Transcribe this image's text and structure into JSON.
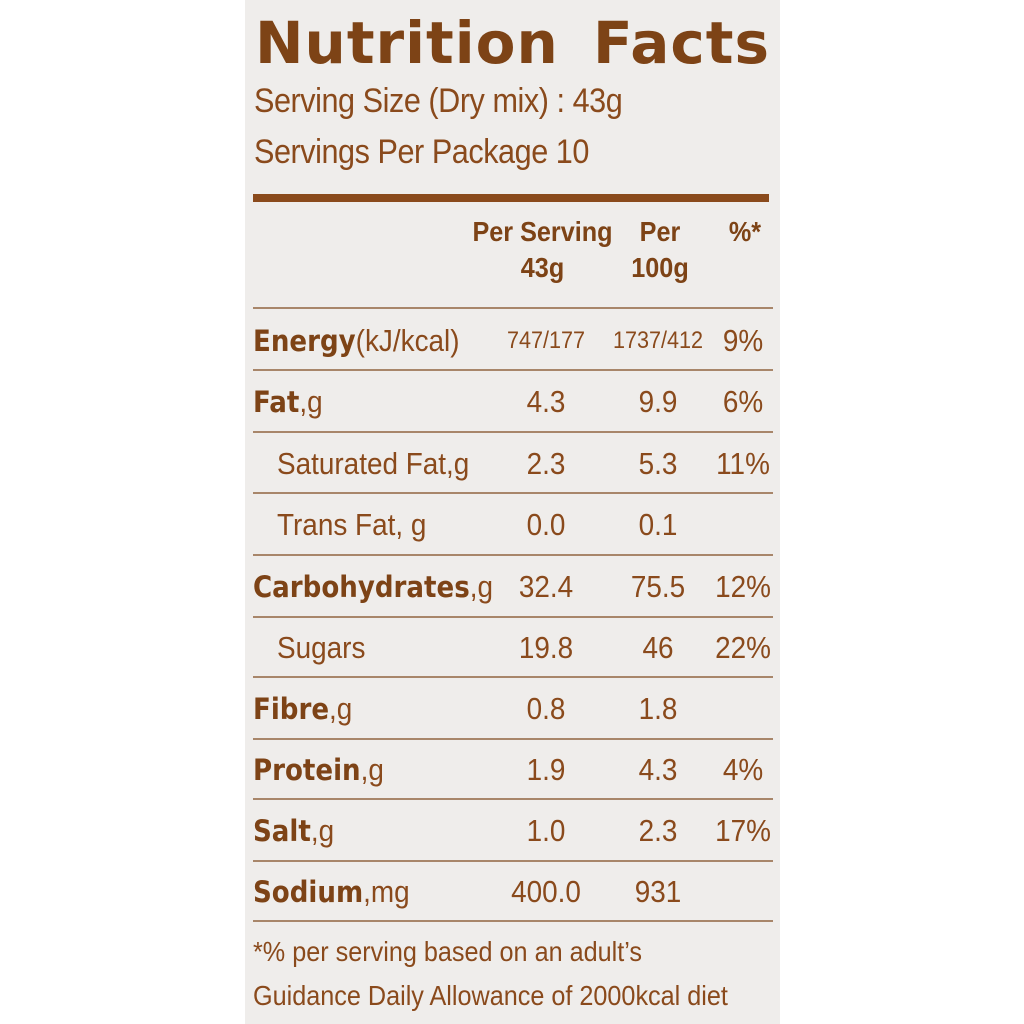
{
  "title_left": "Nutrition",
  "title_right": "Facts",
  "serving_size": "Serving Size (Dry mix) : 43g",
  "servings_per_package": "Servings  Per Package 10",
  "headers": {
    "per_serving_line1": "Per Serving",
    "per_serving_line2": "43g",
    "per100_line1": "Per",
    "per100_line2": "100g",
    "pct": "%*"
  },
  "rows": [
    {
      "name": "Energy",
      "unit": " (kJ/kcal)",
      "bold": true,
      "indent": false,
      "per_serving": "747/177",
      "per_100g": "1737/412",
      "pct": "9%"
    },
    {
      "name": "Fat",
      "unit": ",g",
      "bold": true,
      "indent": false,
      "per_serving": "4.3",
      "per_100g": "9.9",
      "pct": "6%"
    },
    {
      "name": "Saturated Fat,g",
      "unit": "",
      "bold": false,
      "indent": true,
      "per_serving": "2.3",
      "per_100g": "5.3",
      "pct": "11%"
    },
    {
      "name": "Trans Fat, g",
      "unit": "",
      "bold": false,
      "indent": true,
      "per_serving": "0.0",
      "per_100g": "0.1",
      "pct": ""
    },
    {
      "name": "Carbohydrates",
      "unit": ",g",
      "bold": true,
      "indent": false,
      "per_serving": "32.4",
      "per_100g": "75.5",
      "pct": "12%"
    },
    {
      "name": "Sugars",
      "unit": "",
      "bold": false,
      "indent": true,
      "per_serving": "19.8",
      "per_100g": "46",
      "pct": "22%"
    },
    {
      "name": "Fibre",
      "unit": ",g",
      "bold": true,
      "indent": false,
      "per_serving": "0.8",
      "per_100g": "1.8",
      "pct": ""
    },
    {
      "name": "Protein",
      "unit": ",g",
      "bold": true,
      "indent": false,
      "per_serving": "1.9",
      "per_100g": "4.3",
      "pct": "4%"
    },
    {
      "name": "Salt",
      "unit": ",g",
      "bold": true,
      "indent": false,
      "per_serving": "1.0",
      "per_100g": "2.3",
      "pct": "17%"
    },
    {
      "name": "Sodium",
      "unit": ",mg",
      "bold": true,
      "indent": false,
      "per_serving": "400.0",
      "per_100g": "931",
      "pct": ""
    }
  ],
  "footnote_line1": "*% per serving based on an adult’s",
  "footnote_line2": "Guidance Daily  Allowance of 2000kcal diet",
  "colors": {
    "brown": "#8a4a1c",
    "panel": "#efedeb",
    "rule": "#a8866a"
  }
}
